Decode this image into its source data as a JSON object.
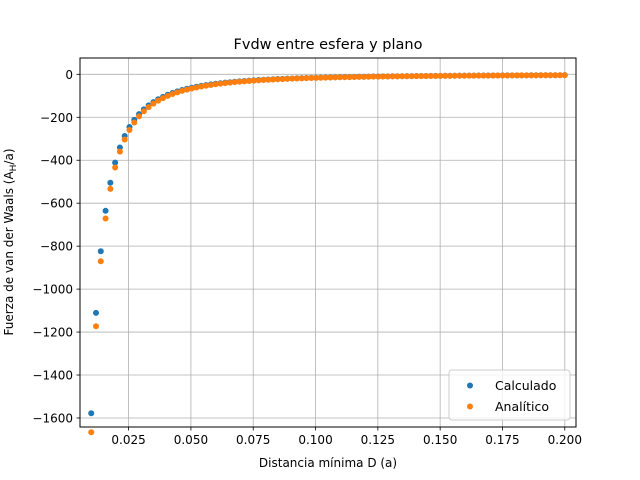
{
  "chart_data": {
    "type": "scatter",
    "title": "Fvdw entre esfera y plano",
    "xlabel": "Distancia mínima D (a)",
    "ylabel": "Fuerza de van der Waals (A",
    "ylabel_sub": "H",
    "ylabel_end": "/a)",
    "xlim": [
      0.0055,
      0.2045
    ],
    "ylim": [
      -1642,
      76
    ],
    "x_ticks": [
      0.025,
      0.05,
      0.075,
      0.1,
      0.125,
      0.15,
      0.175,
      0.2
    ],
    "x_tick_labels": [
      "0.025",
      "0.050",
      "0.075",
      "0.100",
      "0.125",
      "0.150",
      "0.175",
      "0.200"
    ],
    "y_ticks": [
      -1600,
      -1400,
      -1200,
      -1000,
      -800,
      -600,
      -400,
      -200,
      0
    ],
    "y_tick_labels": [
      "−1600",
      "−1400",
      "−1200",
      "−1000",
      "−800",
      "−600",
      "−400",
      "−200",
      "0"
    ],
    "grid": true,
    "legend_position": "lower-right",
    "series": [
      {
        "name": "Calculado",
        "color": "#1f77b4",
        "factor": 0.9467
      },
      {
        "name": "Analítico",
        "color": "#ff7f0e",
        "factor": 1.0
      }
    ],
    "x_range": [
      0.01,
      0.2
    ],
    "x_count": 100,
    "formula": "y = -1 / (6 * x^2)"
  }
}
